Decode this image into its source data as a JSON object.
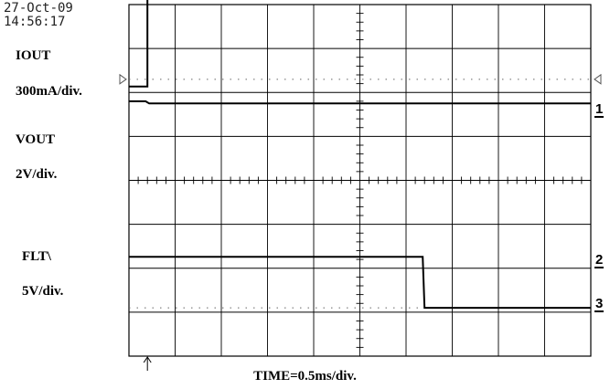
{
  "header": {
    "date": "27-Oct-09",
    "time": "14:56:17"
  },
  "labels": {
    "iout_name": "IOUT",
    "iout_scale": "300mA/div.",
    "vout_name": "VOUT",
    "vout_scale": "2V/div.",
    "flt_name": "FLT\\",
    "flt_scale": "5V/div."
  },
  "channel_markers": {
    "ch1": "1",
    "ch2": "2",
    "ch3": "3"
  },
  "timebase_label": "TIME=0.5ms/div.",
  "colors": {
    "trace": "#000000",
    "grid": "#000000",
    "dotted_reference": "#666666"
  },
  "chart_data": {
    "type": "line",
    "title": "",
    "grid": true,
    "divisions": {
      "horizontal": 10,
      "vertical": 8
    },
    "x_units": "ms",
    "x_per_division_ms": 0.5,
    "xlim_ms": [
      -0.2,
      4.8
    ],
    "trigger_time_ms": 0,
    "series": [
      {
        "name": "IOUT",
        "scale_label": "300mA/div.",
        "unit": "mA",
        "per_division": 300,
        "ground_marker": "1",
        "ground_reference_div": 6.3,
        "points_ms_value": [
          [
            -0.2,
            -50
          ],
          [
            0.0,
            -50
          ],
          [
            0.0,
            750
          ],
          [
            4.8,
            750
          ]
        ]
      },
      {
        "name": "VOUT",
        "scale_label": "2V/div.",
        "unit": "V",
        "per_division": 2,
        "ground_marker": "1",
        "ground_reference_div": 6.3,
        "points_ms_value": [
          [
            -0.2,
            -1.0
          ],
          [
            -0.02,
            -1.0
          ],
          [
            0.0,
            -1.05
          ],
          [
            0.02,
            -1.1
          ],
          [
            4.8,
            -1.1
          ]
        ]
      },
      {
        "name": "FLT\\",
        "scale_label": "5V/div.",
        "unit": "V",
        "per_division": 5,
        "ground_marker": "3",
        "ground_reference_div": 1.1,
        "points_ms_value": [
          [
            -0.2,
            5.8
          ],
          [
            2.98,
            5.8
          ],
          [
            3.0,
            0
          ],
          [
            4.8,
            0
          ]
        ]
      }
    ],
    "dotted_reference_markers": [
      "1",
      "3"
    ]
  }
}
